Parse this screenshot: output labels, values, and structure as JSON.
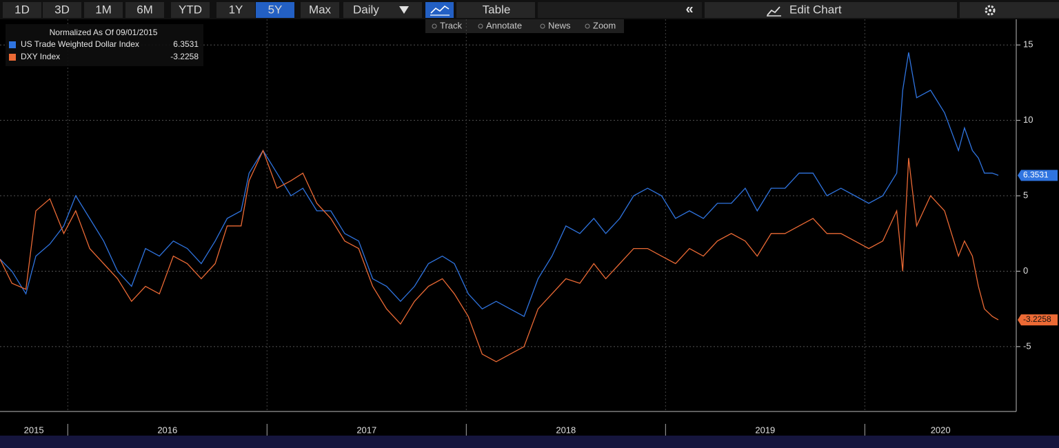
{
  "toolbar": {
    "ranges": [
      "1D",
      "3D",
      "1M",
      "6M",
      "YTD",
      "1Y",
      "5Y",
      "Max"
    ],
    "selected_range": "5Y",
    "frequency": "Daily",
    "table": "Table",
    "edit": "Edit Chart"
  },
  "chart_tools": [
    "Track",
    "Annotate",
    "News",
    "Zoom"
  ],
  "chart_data": {
    "type": "line",
    "legend_title": "Normalized As Of 09/01/2015",
    "legend": "top-left",
    "grid": true,
    "x": [
      2015.66,
      2015.72,
      2015.79,
      2015.84,
      2015.91,
      2015.98,
      2016.04,
      2016.11,
      2016.18,
      2016.25,
      2016.32,
      2016.39,
      2016.46,
      2016.53,
      2016.6,
      2016.67,
      2016.74,
      2016.8,
      2016.87,
      2016.91,
      2016.98,
      2017.05,
      2017.12,
      2017.18,
      2017.25,
      2017.32,
      2017.39,
      2017.46,
      2017.53,
      2017.6,
      2017.67,
      2017.74,
      2017.81,
      2017.88,
      2017.94,
      2018.01,
      2018.08,
      2018.15,
      2018.22,
      2018.29,
      2018.36,
      2018.43,
      2018.5,
      2018.57,
      2018.64,
      2018.7,
      2018.77,
      2018.84,
      2018.91,
      2018.98,
      2019.05,
      2019.12,
      2019.19,
      2019.26,
      2019.33,
      2019.4,
      2019.46,
      2019.53,
      2019.6,
      2019.67,
      2019.74,
      2019.81,
      2019.88,
      2019.95,
      2020.02,
      2020.09,
      2020.16,
      2020.19,
      2020.22,
      2020.26,
      2020.33,
      2020.4,
      2020.47,
      2020.5,
      2020.54,
      2020.57,
      2020.6,
      2020.64,
      2020.67
    ],
    "series": [
      {
        "name": "US Trade Weighted Dollar Index",
        "color": "#2f74e0",
        "values": [
          0.8,
          0.0,
          -1.5,
          1.0,
          1.8,
          3.0,
          5.0,
          3.5,
          2.0,
          0.0,
          -1.0,
          1.5,
          1.0,
          2.0,
          1.5,
          0.5,
          2.0,
          3.5,
          4.0,
          6.5,
          8.0,
          6.5,
          5.0,
          5.5,
          4.0,
          4.0,
          2.5,
          2.0,
          -0.5,
          -1.0,
          -2.0,
          -1.0,
          0.5,
          1.0,
          0.5,
          -1.5,
          -2.5,
          -2.0,
          -2.5,
          -3.0,
          -0.5,
          1.0,
          3.0,
          2.5,
          3.5,
          2.5,
          3.5,
          5.0,
          5.5,
          5.0,
          3.5,
          4.0,
          3.5,
          4.5,
          4.5,
          5.5,
          4.0,
          5.5,
          5.5,
          6.5,
          6.5,
          5.0,
          5.5,
          5.0,
          4.5,
          5.0,
          6.5,
          12.0,
          14.5,
          11.5,
          12.0,
          10.5,
          8.0,
          9.5,
          8.0,
          7.5,
          6.5,
          6.5,
          6.3531
        ]
      },
      {
        "name": "DXY Index",
        "color": "#ec6a35",
        "values": [
          0.8,
          -0.8,
          -1.2,
          4.0,
          4.8,
          2.5,
          4.0,
          1.5,
          0.5,
          -0.5,
          -2.0,
          -1.0,
          -1.5,
          1.0,
          0.5,
          -0.5,
          0.5,
          3.0,
          3.0,
          6.0,
          8.0,
          5.5,
          6.0,
          6.5,
          4.5,
          3.5,
          2.0,
          1.5,
          -1.0,
          -2.5,
          -3.5,
          -2.0,
          -1.0,
          -0.5,
          -1.5,
          -3.0,
          -5.5,
          -6.0,
          -5.5,
          -5.0,
          -2.5,
          -1.5,
          -0.5,
          -0.8,
          0.5,
          -0.5,
          0.5,
          1.5,
          1.5,
          1.0,
          0.5,
          1.5,
          1.0,
          2.0,
          2.5,
          2.0,
          1.0,
          2.5,
          2.5,
          3.0,
          3.5,
          2.5,
          2.5,
          2.0,
          1.5,
          2.0,
          4.0,
          0.0,
          7.5,
          3.0,
          5.0,
          4.0,
          1.0,
          2.0,
          1.0,
          -1.0,
          -2.5,
          -3.0,
          -3.2258
        ]
      }
    ],
    "xlim": [
      2015.66,
      2020.76
    ],
    "xticks": [
      2016,
      2017,
      2018,
      2019,
      2020
    ],
    "year_labels": [
      "2015",
      "2016",
      "2017",
      "2018",
      "2019",
      "2020"
    ],
    "ylim": [
      -9.3,
      16.7
    ],
    "yticks": [
      -5,
      0,
      5,
      10,
      15
    ]
  }
}
